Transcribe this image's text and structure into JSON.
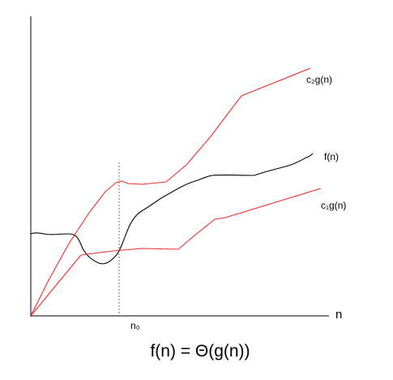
{
  "diagram": {
    "labels": {
      "upper_bound": "c₂g(n)",
      "function": "f(n)",
      "lower_bound": "c₁g(n)",
      "x_axis": "n",
      "threshold": "n₀",
      "caption": "f(n) = Θ(g(n))"
    },
    "colors": {
      "bounds": "#e8302c",
      "function": "#000000",
      "axes": "#000000",
      "threshold_line": "#555555"
    }
  }
}
